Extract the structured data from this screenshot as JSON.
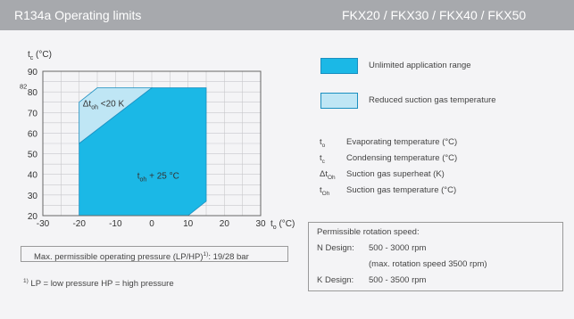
{
  "header": {
    "left_title": "R134a  Operating limits",
    "right_title": "FKX20 / FKX30 / FKX40 / FKX50"
  },
  "chart_data": {
    "type": "area",
    "y_axis_label_main": "t",
    "y_axis_label_sub": "c",
    "y_axis_label_unit": " (°C)",
    "x_axis_label_main": "t",
    "x_axis_label_sub": "o",
    "x_axis_label_unit": " (°C)",
    "xlim": [
      -30,
      30
    ],
    "ylim": [
      20,
      90
    ],
    "x_ticks": [
      -30,
      -20,
      -10,
      0,
      10,
      20,
      30
    ],
    "y_ticks": [
      20,
      30,
      40,
      50,
      60,
      70,
      80,
      90
    ],
    "y_extra_tick": {
      "label": "82",
      "value": 82
    },
    "grid": true,
    "series": [
      {
        "name": "Unlimited application range",
        "color": "#1bb8e6",
        "polygon": [
          [
            -20,
            20
          ],
          [
            -20,
            55
          ],
          [
            0,
            82
          ],
          [
            15,
            82
          ],
          [
            15,
            27
          ],
          [
            10,
            20
          ]
        ]
      },
      {
        "name": "Reduced suction gas temperature",
        "color": "#bfe6f5",
        "polygon": [
          [
            -20,
            55
          ],
          [
            -20,
            75
          ],
          [
            -15,
            82
          ],
          [
            0,
            82
          ]
        ]
      }
    ],
    "annotations": [
      {
        "main": "Δt",
        "sub": "oh",
        "rest": " <20 K",
        "x": -19,
        "y": 73
      },
      {
        "main": "t",
        "sub": "oh",
        "rest": " + 25 °C",
        "x": -4,
        "y": 38
      }
    ]
  },
  "legend": {
    "unlimited": {
      "label": "Unlimited application range",
      "color": "#1bb8e6"
    },
    "reduced": {
      "label": "Reduced suction gas temperature",
      "color": "#bfe6f5"
    }
  },
  "symbols": [
    {
      "main": "t",
      "sub": "o",
      "desc": "Evaporating temperature (°C)"
    },
    {
      "main": "t",
      "sub": "c",
      "desc": "Condensing temperature (°C)"
    },
    {
      "main": "Δt",
      "sub": "Oh",
      "desc": "Suction gas superheat (K)"
    },
    {
      "main": "t",
      "sub": "Oh",
      "desc": "Suction gas temperature (°C)"
    }
  ],
  "pressure_note": {
    "text": "Max. permissible operating pressure (LP/HP)",
    "sup": "1)",
    "value": ": 19/28 bar"
  },
  "footnote": {
    "sup": "1)",
    "text": " LP = low pressure  HP = high pressure"
  },
  "rotation": {
    "title": "Permissible rotation speed:",
    "n_label": "N Design:",
    "n_value": "500 - 3000 rpm",
    "n_note": "(max. rotation speed 3500 rpm)",
    "k_label": "K Design:",
    "k_value": "500 - 3500 rpm"
  }
}
